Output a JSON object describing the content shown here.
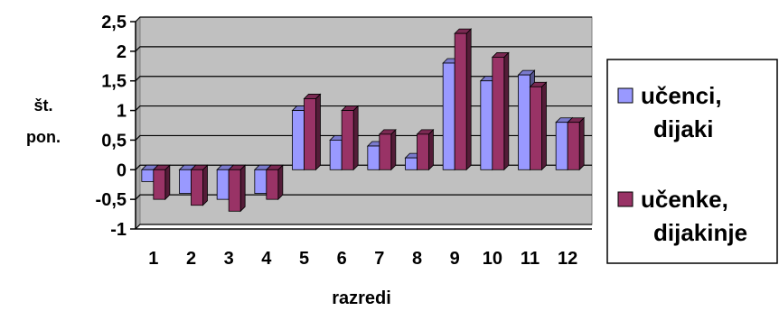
{
  "chart_data": {
    "type": "bar",
    "categories": [
      "1",
      "2",
      "3",
      "4",
      "5",
      "6",
      "7",
      "8",
      "9",
      "10",
      "11",
      "12"
    ],
    "series": [
      {
        "name": "učenci, dijaki",
        "color": "#9999ff",
        "values": [
          -0.2,
          -0.4,
          -0.5,
          -0.4,
          1.0,
          0.5,
          0.4,
          0.2,
          1.8,
          1.5,
          1.6,
          0.8
        ]
      },
      {
        "name": "učenke, dijakinje",
        "color": "#993366",
        "values": [
          -0.5,
          -0.6,
          -0.7,
          -0.5,
          1.2,
          1.0,
          0.6,
          0.6,
          2.3,
          1.9,
          1.4,
          0.8
        ]
      }
    ],
    "yticks": [
      "2,5",
      "2",
      "1,5",
      "1",
      "0,5",
      "0",
      "-0,5",
      "-1"
    ],
    "ylim": [
      -1,
      2.5
    ],
    "xlabel": "razredi",
    "ylabel": [
      "št.",
      "pon."
    ],
    "legend_position": "right",
    "plot_background": "#c0c0c0",
    "grid": true
  }
}
